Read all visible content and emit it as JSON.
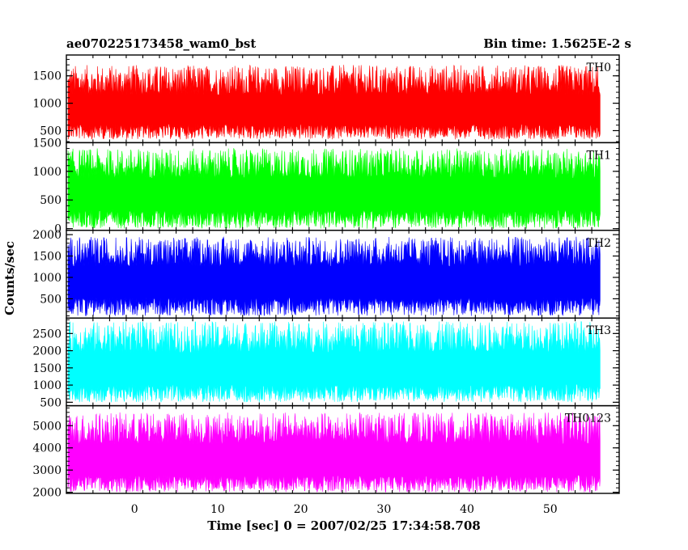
{
  "header": {
    "title": "ae070225173458_wam0_bst",
    "bin_time": "Bin time: 1.5625E-2 s"
  },
  "chart_data": {
    "type": "line",
    "title": "ae070225173458_wam0_bst",
    "subtitle": "Bin time: 1.5625E-2 s",
    "xlabel": "Time [sec] 0 = 2007/02/25 17:34:58.708",
    "ylabel": "Counts/sec",
    "xlim": [
      -8.2,
      58.3
    ],
    "data_x_range": [
      -8.0,
      56.0
    ],
    "bin_time_s": 0.015625,
    "x_ticks": [
      0,
      10,
      20,
      30,
      40,
      50
    ],
    "x_tick_labels": [
      "0",
      "10",
      "20",
      "30",
      "40",
      "50"
    ],
    "grid": false,
    "series": [
      {
        "name": "TH0",
        "color": "#ff0000",
        "ylim": [
          280,
          1880
        ],
        "y_ticks": [
          500,
          1000,
          1500
        ],
        "y_tick_labels": [
          "500",
          "1000",
          "1500"
        ],
        "typical_range": [
          340,
          1700
        ],
        "mean": 850
      },
      {
        "name": "TH1",
        "color": "#00ff00",
        "ylim": [
          -30,
          1500
        ],
        "y_ticks": [
          0,
          500,
          1000,
          1500
        ],
        "y_tick_labels": [
          "0",
          "500",
          "1000",
          "1500"
        ],
        "typical_range": [
          0,
          1400
        ],
        "mean": 600
      },
      {
        "name": "TH2",
        "color": "#0000ff",
        "ylim": [
          50,
          2100
        ],
        "y_ticks": [
          500,
          1000,
          1500,
          2000
        ],
        "y_tick_labels": [
          "500",
          "1000",
          "1500",
          "2000"
        ],
        "typical_range": [
          100,
          1950
        ],
        "mean": 880
      },
      {
        "name": "TH3",
        "color": "#00ffff",
        "ylim": [
          400,
          2950
        ],
        "y_ticks": [
          500,
          1000,
          1500,
          2000,
          2500
        ],
        "y_tick_labels": [
          "500",
          "1000",
          "1500",
          "2000",
          "2500"
        ],
        "typical_range": [
          500,
          2850
        ],
        "mean": 1450
      },
      {
        "name": "TH0123",
        "color": "#ff00ff",
        "ylim": [
          1950,
          5900
        ],
        "y_ticks": [
          2000,
          3000,
          4000,
          5000
        ],
        "y_tick_labels": [
          "2000",
          "3000",
          "4000",
          "5000"
        ],
        "typical_range": [
          2000,
          5600
        ],
        "mean": 3400
      }
    ]
  }
}
